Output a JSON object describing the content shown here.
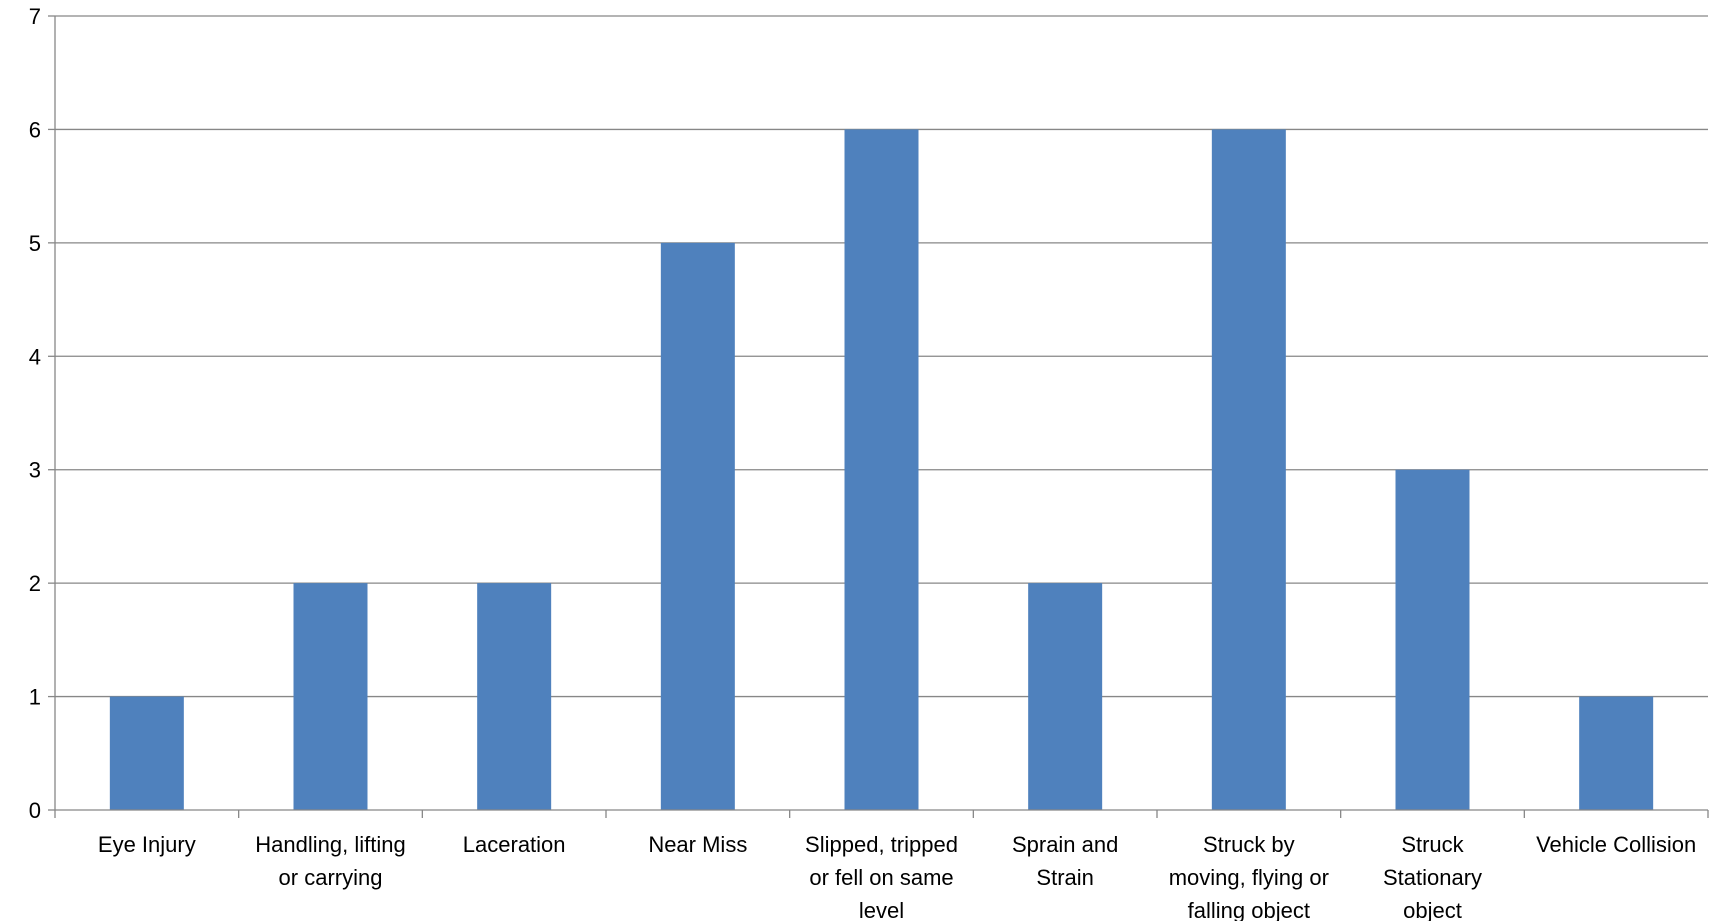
{
  "chart_data": {
    "type": "bar",
    "title": "",
    "xlabel": "",
    "ylabel": "",
    "ylim": [
      0,
      7
    ],
    "yticks": [
      0,
      1,
      2,
      3,
      4,
      5,
      6,
      7
    ],
    "grid": true,
    "legend": "none",
    "bar_color": "#4f81bd",
    "categories": [
      [
        "Eye Injury"
      ],
      [
        "Handling, lifting",
        "or carrying"
      ],
      [
        "Laceration"
      ],
      [
        "Near Miss"
      ],
      [
        "Slipped, tripped",
        "or fell on same",
        "level"
      ],
      [
        "Sprain and",
        "Strain"
      ],
      [
        "Struck by",
        "moving, flying or",
        "falling object"
      ],
      [
        "Struck",
        "Stationary",
        "object"
      ],
      [
        "Vehicle Collision"
      ]
    ],
    "values": [
      1,
      2,
      2,
      5,
      6,
      2,
      6,
      3,
      1
    ]
  }
}
